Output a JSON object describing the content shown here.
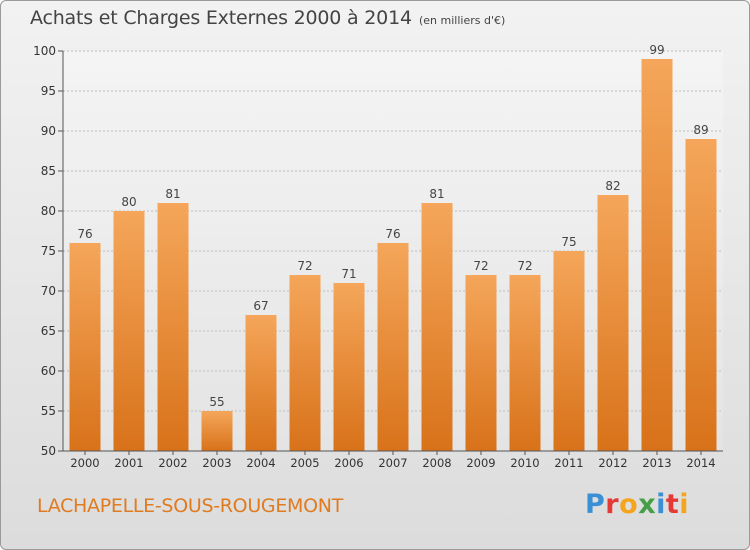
{
  "header": {
    "title": "Achats et Charges Externes 2000 à 2014",
    "subtitle": "(en milliers d'€)"
  },
  "footer": {
    "commune": "LACHAPELLE-SOUS-ROUGEMONT",
    "logo_text": "Proxiti",
    "logo_colors": [
      "#3a8fd6",
      "#e53935",
      "#f4a51c",
      "#43a047",
      "#3a8fd6",
      "#e53935",
      "#f4a51c"
    ]
  },
  "colors": {
    "bar_top": "#f5a65a",
    "bar_bottom": "#d8721a",
    "grid": "#bdbdbd",
    "axis_text": "#333333",
    "label_text": "#444444"
  },
  "chart_data": {
    "type": "bar",
    "categories": [
      "2000",
      "2001",
      "2002",
      "2003",
      "2004",
      "2005",
      "2006",
      "2007",
      "2008",
      "2009",
      "2010",
      "2011",
      "2012",
      "2013",
      "2014"
    ],
    "values": [
      76,
      80,
      81,
      55,
      67,
      72,
      71,
      76,
      81,
      72,
      72,
      75,
      82,
      99,
      89
    ],
    "ylim": [
      50,
      100
    ],
    "yticks": [
      50,
      55,
      60,
      65,
      70,
      75,
      80,
      85,
      90,
      95,
      100
    ],
    "grid": true,
    "data_labels": true
  }
}
